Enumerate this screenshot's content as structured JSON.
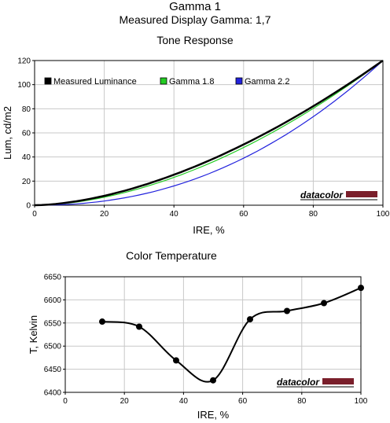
{
  "header": {
    "title": "Gamma 1",
    "subtitle": "Measured Display Gamma: 1,7"
  },
  "brand": {
    "logo_text": "datacolor",
    "logo_color": "#7a1f2b"
  },
  "colors": {
    "measured": "#000000",
    "gamma18": "#22cc22",
    "gamma22": "#2222dd",
    "grid": "#c8c8c8"
  },
  "chart_data": [
    {
      "type": "line",
      "title": "Tone Response",
      "xlabel": "IRE, %",
      "ylabel": "Lum, cd/m2",
      "xlim": [
        0,
        100
      ],
      "ylim": [
        0,
        120
      ],
      "xticks": [
        0,
        20,
        40,
        60,
        80,
        100
      ],
      "yticks": [
        0,
        20,
        40,
        60,
        80,
        100,
        120
      ],
      "grid": true,
      "legend_position": "top",
      "series": [
        {
          "name": "Measured Luminance",
          "color": "#000000",
          "gamma": 1.7,
          "x": [
            0,
            10,
            20,
            30,
            40,
            50,
            60,
            70,
            80,
            90,
            100
          ],
          "y": [
            0,
            2.4,
            7.3,
            14.6,
            23.7,
            36.1,
            50.3,
            65.8,
            82.5,
            100.7,
            120
          ]
        },
        {
          "name": "Gamma 1.8",
          "color": "#22cc22",
          "gamma": 1.8,
          "x": [
            0,
            10,
            20,
            30,
            40,
            50,
            60,
            70,
            80,
            90,
            100
          ],
          "y": [
            0,
            1.9,
            6.3,
            13.2,
            22.1,
            34.5,
            47.4,
            63.0,
            80.0,
            99.0,
            120
          ]
        },
        {
          "name": "Gamma 2.2",
          "color": "#2222dd",
          "gamma": 2.2,
          "x": [
            0,
            10,
            20,
            30,
            40,
            50,
            60,
            70,
            80,
            90,
            100
          ],
          "y": [
            0,
            0.8,
            3.3,
            8.3,
            15.1,
            26.1,
            38.0,
            54.0,
            72.0,
            94.5,
            120
          ]
        }
      ]
    },
    {
      "type": "line",
      "title": "Color Temperature",
      "xlabel": "IRE, %",
      "ylabel": "T, Kelvin",
      "xlim": [
        0,
        100
      ],
      "ylim": [
        6400,
        6650
      ],
      "xticks": [
        0,
        20,
        40,
        60,
        80,
        100
      ],
      "yticks": [
        6400,
        6450,
        6500,
        6550,
        6600,
        6650
      ],
      "grid": true,
      "series": [
        {
          "color": "#000000",
          "x": [
            12.5,
            25,
            37.5,
            50,
            62.5,
            75,
            87.5,
            100
          ],
          "y": [
            6553,
            6542,
            6469,
            6426,
            6558,
            6576,
            6593,
            6626
          ]
        }
      ]
    }
  ]
}
